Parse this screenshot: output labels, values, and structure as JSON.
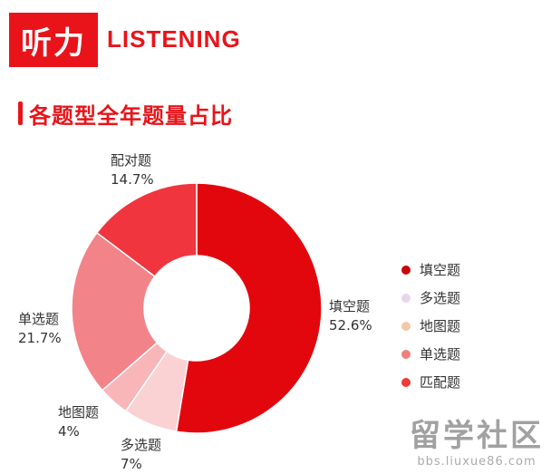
{
  "header": {
    "badge": "听力",
    "title": "LISTENING"
  },
  "chart_data": {
    "type": "pie",
    "title": "各题型全年题量占比",
    "donut": true,
    "legend_position": "right",
    "slices": [
      {
        "name": "填空题",
        "value": 52.6,
        "label": "52.6%",
        "color": "#e2070d"
      },
      {
        "name": "多选题",
        "value": 7,
        "label": "7%",
        "color": "#fbd2d4"
      },
      {
        "name": "地图题",
        "value": 4,
        "label": "4%",
        "color": "#f8b6b8"
      },
      {
        "name": "单选题",
        "value": 21.7,
        "label": "21.7%",
        "color": "#f28389"
      },
      {
        "name": "配对题",
        "value": 14.7,
        "label": "14.7%",
        "color": "#f0353f"
      }
    ],
    "legend": [
      {
        "name": "填空题",
        "color": "#c8060d"
      },
      {
        "name": "多选题",
        "color": "#e9d6ec"
      },
      {
        "name": "地图题",
        "color": "#f4c7a6"
      },
      {
        "name": "单选题",
        "color": "#f07f7f"
      },
      {
        "name": "匹配题",
        "color": "#ee3a3a"
      }
    ]
  },
  "watermark": {
    "main": "留学社区",
    "sub": "bbs.liuxue86.com"
  }
}
